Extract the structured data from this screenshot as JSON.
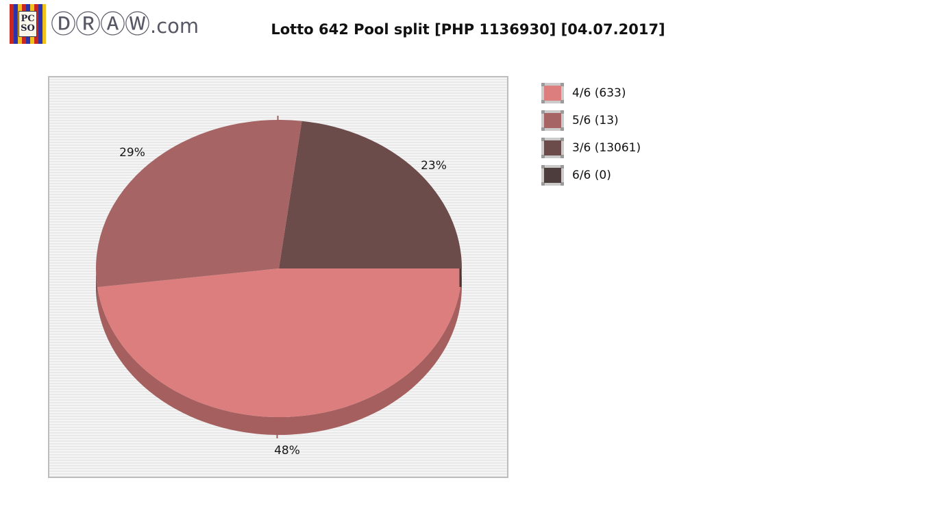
{
  "header": {
    "logo": {
      "icon_line1": "PC",
      "icon_line2": "SO",
      "site_name": "ⒹⓇⒶⓌ",
      "site_tld": ".com"
    },
    "title": "Lotto 642 Pool split [PHP 1136930] [04.07.2017]"
  },
  "legend": {
    "items": [
      {
        "label": "4/6 (633)",
        "color": "#dd7e7e"
      },
      {
        "label": "5/6 (13)",
        "color": "#a76464"
      },
      {
        "label": "3/6 (13061)",
        "color": "#6c4b4b"
      },
      {
        "label": "6/6 (0)",
        "color": "#4e3d3d"
      }
    ]
  },
  "chart_data": {
    "type": "pie",
    "title": "Lotto 642 Pool split [PHP 1136930] [04.07.2017]",
    "is_3d": true,
    "start_angle_deg": 82.8,
    "slices": [
      {
        "name": "3/6",
        "count": 13061,
        "pct": 23,
        "pct_label": "23%",
        "color": "#6c4b4b",
        "rim_color": "#523b3b"
      },
      {
        "name": "4/6",
        "count": 633,
        "pct": 48,
        "pct_label": "48%",
        "color": "#dd7e7e",
        "rim_color": "#a55f5f"
      },
      {
        "name": "5/6",
        "count": 13,
        "pct": 29,
        "pct_label": "29%",
        "color": "#a76464",
        "rim_color": "#7b5252"
      },
      {
        "name": "6/6",
        "count": 0,
        "pct": 0,
        "pct_label": "",
        "color": "#4e3d3d",
        "rim_color": "#3a2e2e"
      }
    ],
    "legend_entries": [
      "4/6 (633)",
      "5/6 (13)",
      "3/6 (13061)",
      "6/6 (0)"
    ]
  }
}
